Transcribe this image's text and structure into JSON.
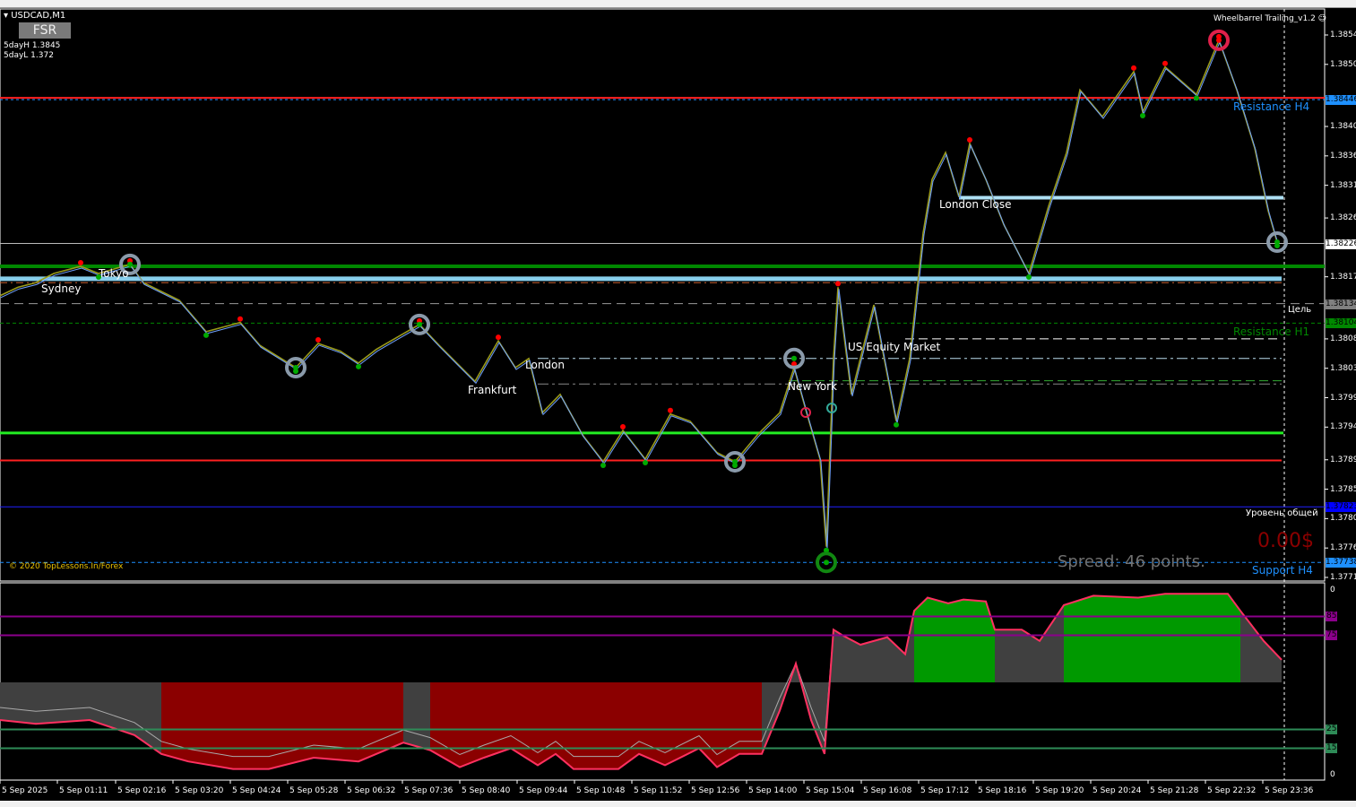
{
  "window": {
    "symbol_timeframe": "USDCAD,M1",
    "fsr_button": "FSR",
    "five_day_high": "5dayH 1.3845",
    "five_day_low": "5dayL 1.372",
    "indicator_name": "Wheelbarrel Trailing_v1.2",
    "copyright": "© 2020 TopLessons.In/Forex",
    "spread": "Spread: 46 points.",
    "profit": "0.00$"
  },
  "colors": {
    "background": "#000000",
    "bull": "#6fa0ff",
    "bear": "#9a9a1a",
    "resistance": "#ff2020",
    "support": "#22ee22",
    "oscillator_bull": "#009900",
    "oscillator_bear": "#8b0000",
    "oscillator_line": "#e0204a"
  },
  "levels": [
    {
      "label": "Resistance H4",
      "price": 1.38446,
      "color": "#1e90ff"
    },
    {
      "label": "Цель",
      "price": 1.38134,
      "color": "#ffffff"
    },
    {
      "label": "Resistance H1",
      "price": 1.38104,
      "color": "#008800"
    },
    {
      "label": "Уровень общей",
      "price": 1.37823,
      "color": "#ffffff"
    },
    {
      "label": "Support H4",
      "price": 1.37738,
      "color": "#1e90ff"
    }
  ],
  "sessions": [
    "Sydney",
    "Tokyo",
    "Frankfurt",
    "London",
    "New York",
    "US Equity Market",
    "London Close"
  ],
  "chart_data": [
    {
      "type": "line",
      "title": "USDCAD,M1",
      "price_ticks": [
        "1.38545",
        "1.38500",
        "1.38405",
        "1.38360",
        "1.38315",
        "1.38265",
        "1.38175",
        "1.38080",
        "1.38035",
        "1.37990",
        "1.37945",
        "1.37895",
        "1.37850",
        "1.37805",
        "1.37760",
        "1.37715"
      ],
      "price_boxes": [
        {
          "value": "1.38446",
          "bg": "#1e90ff"
        },
        {
          "value": "1.38226",
          "bg": "#ffffff"
        },
        {
          "value": "1.38134",
          "bg": "#808080"
        },
        {
          "value": "1.38104",
          "bg": "#008800"
        },
        {
          "value": "1.37823",
          "bg": "#0000ff"
        },
        {
          "value": "1.37738",
          "bg": "#1e90ff"
        }
      ],
      "time_ticks": [
        "5 Sep 2025",
        "5 Sep 01:11",
        "5 Sep 02:16",
        "5 Sep 03:20",
        "5 Sep 04:24",
        "5 Sep 05:28",
        "5 Sep 06:32",
        "5 Sep 07:36",
        "5 Sep 08:40",
        "5 Sep 09:44",
        "5 Sep 10:48",
        "5 Sep 11:52",
        "5 Sep 12:56",
        "5 Sep 14:00",
        "5 Sep 15:04",
        "5 Sep 16:08",
        "5 Sep 17:12",
        "5 Sep 18:16",
        "5 Sep 19:20",
        "5 Sep 20:24",
        "5 Sep 21:28",
        "5 Sep 22:32",
        "5 Sep 23:36"
      ],
      "ylim": [
        1.377,
        1.3857
      ],
      "series": [
        {
          "values": [
            [
              "00:07",
              1.38146
            ],
            [
              "00:27",
              1.38159
            ],
            [
              "00:47",
              1.38166
            ],
            [
              "01:07",
              1.3818
            ],
            [
              "01:37",
              1.38191
            ],
            [
              "01:57",
              1.3818
            ],
            [
              "02:32",
              1.38194
            ],
            [
              "02:47",
              1.38166
            ],
            [
              "03:27",
              1.38139
            ],
            [
              "03:57",
              1.38091
            ],
            [
              "04:35",
              1.38105
            ],
            [
              "04:57",
              1.3807
            ],
            [
              "05:37",
              1.38036
            ],
            [
              "06:02",
              1.38073
            ],
            [
              "06:27",
              1.38061
            ],
            [
              "06:47",
              1.38043
            ],
            [
              "07:07",
              1.38064
            ],
            [
              "07:32",
              1.38084
            ],
            [
              "07:55",
              1.38102
            ],
            [
              "08:17",
              1.3807
            ],
            [
              "08:57",
              1.38015
            ],
            [
              "09:23",
              1.38077
            ],
            [
              "09:42",
              1.38036
            ],
            [
              "09:57",
              1.3805
            ],
            [
              "10:12",
              1.37967
            ],
            [
              "10:32",
              1.37995
            ],
            [
              "10:57",
              1.37933
            ],
            [
              "11:20",
              1.37892
            ],
            [
              "11:42",
              1.3794
            ],
            [
              "12:07",
              1.37896
            ],
            [
              "12:35",
              1.37965
            ],
            [
              "12:57",
              1.37954
            ],
            [
              "13:27",
              1.37906
            ],
            [
              "13:47",
              1.37892
            ],
            [
              "14:12",
              1.37933
            ],
            [
              "14:37",
              1.37967
            ],
            [
              "14:53",
              1.38036
            ],
            [
              "15:07",
              1.37967
            ],
            [
              "15:22",
              1.37896
            ],
            [
              "15:29",
              1.37762
            ],
            [
              "15:37",
              1.3805
            ],
            [
              "15:42",
              1.38159
            ],
            [
              "15:57",
              1.37995
            ],
            [
              "16:22",
              1.38132
            ],
            [
              "16:47",
              1.37954
            ],
            [
              "17:02",
              1.3805
            ],
            [
              "17:17",
              1.38242
            ],
            [
              "17:27",
              1.38324
            ],
            [
              "17:42",
              1.38365
            ],
            [
              "17:57",
              1.38297
            ],
            [
              "18:09",
              1.38379
            ],
            [
              "18:27",
              1.38324
            ],
            [
              "18:47",
              1.38255
            ],
            [
              "19:15",
              1.3818
            ],
            [
              "19:37",
              1.38283
            ],
            [
              "19:57",
              1.38365
            ],
            [
              "20:12",
              1.38461
            ],
            [
              "20:37",
              1.3842
            ],
            [
              "21:12",
              1.38489
            ],
            [
              "21:22",
              1.38427
            ],
            [
              "21:47",
              1.38496
            ],
            [
              "22:22",
              1.38454
            ],
            [
              "22:47",
              1.38537
            ],
            [
              "23:07",
              1.38461
            ],
            [
              "23:27",
              1.38372
            ],
            [
              "23:42",
              1.38276
            ],
            [
              "23:52",
              1.38228
            ]
          ]
        }
      ],
      "markers": {
        "highs": [
          [
            "01:37",
            1.38191
          ],
          [
            "02:32",
            1.38194
          ],
          [
            "04:35",
            1.38105
          ],
          [
            "06:02",
            1.38073
          ],
          [
            "07:55",
            1.38102
          ],
          [
            "09:23",
            1.38077
          ],
          [
            "11:42",
            1.3794
          ],
          [
            "12:35",
            1.37965
          ],
          [
            "14:53",
            1.38036
          ],
          [
            "15:42",
            1.38159
          ],
          [
            "18:09",
            1.38379
          ],
          [
            "21:12",
            1.38489
          ],
          [
            "21:47",
            1.38496
          ],
          [
            "22:47",
            1.38537
          ]
        ],
        "lows": [
          [
            "01:57",
            1.3818
          ],
          [
            "03:57",
            1.38091
          ],
          [
            "05:37",
            1.38036
          ],
          [
            "06:47",
            1.38043
          ],
          [
            "11:20",
            1.37892
          ],
          [
            "12:07",
            1.37896
          ],
          [
            "13:47",
            1.37892
          ],
          [
            "15:29",
            1.37762
          ],
          [
            "16:47",
            1.37954
          ],
          [
            "19:15",
            1.3818
          ],
          [
            "21:22",
            1.38427
          ],
          [
            "22:22",
            1.38454
          ],
          [
            "23:52",
            1.38228
          ]
        ],
        "rings": [
          [
            "02:32",
            1.38194,
            "gray"
          ],
          [
            "05:37",
            1.38036,
            "gray"
          ],
          [
            "07:55",
            1.38102,
            "gray"
          ],
          [
            "13:47",
            1.37892,
            "gray"
          ],
          [
            "14:53",
            1.3805,
            "gray"
          ],
          [
            "23:52",
            1.38228,
            "gray"
          ],
          [
            "22:47",
            1.38537,
            "red"
          ],
          [
            "15:29",
            1.37738,
            "green"
          ]
        ]
      }
    },
    {
      "type": "area",
      "levels": [
        "85",
        "75",
        "25",
        "15"
      ],
      "axis_labels": [
        "0",
        "0"
      ],
      "ylim": [
        0,
        100
      ],
      "series": [
        {
          "values": [
            [
              "00:07",
              30
            ],
            [
              "00:47",
              28
            ],
            [
              "01:47",
              30
            ],
            [
              "02:37",
              22
            ],
            [
              "03:07",
              12
            ],
            [
              "03:37",
              8
            ],
            [
              "04:27",
              4
            ],
            [
              "05:07",
              4
            ],
            [
              "05:57",
              10
            ],
            [
              "06:47",
              8
            ],
            [
              "07:37",
              18
            ],
            [
              "08:07",
              14
            ],
            [
              "08:40",
              5
            ],
            [
              "09:07",
              10
            ],
            [
              "09:37",
              15
            ],
            [
              "10:07",
              6
            ],
            [
              "10:27",
              12
            ],
            [
              "10:47",
              4
            ],
            [
              "11:37",
              4
            ],
            [
              "12:00",
              12
            ],
            [
              "12:29",
              6
            ],
            [
              "13:07",
              15
            ],
            [
              "13:27",
              5
            ],
            [
              "13:52",
              12
            ],
            [
              "14:17",
              12
            ],
            [
              "14:37",
              35
            ],
            [
              "14:55",
              60
            ],
            [
              "15:12",
              30
            ],
            [
              "15:27",
              12
            ],
            [
              "15:37",
              78
            ],
            [
              "15:47",
              75
            ],
            [
              "16:07",
              70
            ],
            [
              "16:37",
              74
            ],
            [
              "16:57",
              65
            ],
            [
              "17:07",
              88
            ],
            [
              "17:22",
              95
            ],
            [
              "17:45",
              92
            ],
            [
              "18:02",
              94
            ],
            [
              "18:27",
              93
            ],
            [
              "18:37",
              78
            ],
            [
              "19:07",
              78
            ],
            [
              "19:27",
              72
            ],
            [
              "19:54",
              91
            ],
            [
              "20:27",
              96
            ],
            [
              "21:17",
              95
            ],
            [
              "21:47",
              97
            ],
            [
              "22:57",
              97
            ],
            [
              "23:11",
              88
            ],
            [
              "23:37",
              72
            ],
            [
              "23:57",
              62
            ]
          ]
        }
      ]
    }
  ]
}
